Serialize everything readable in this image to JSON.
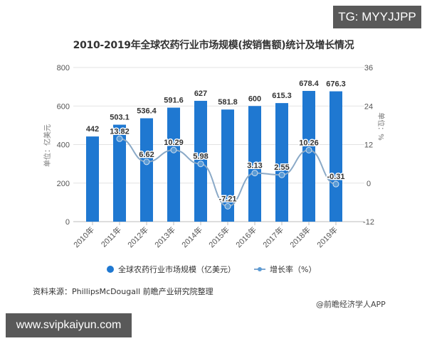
{
  "badges": {
    "tg": "TG: MYYJJPP",
    "url": "www.svipkaiyun.com"
  },
  "title": "2010-2019年全球农药行业市场规模(按销售额)统计及增长情况",
  "axes": {
    "left_title": "单位：亿美元",
    "right_title": "单位：%"
  },
  "legend": {
    "bar": "全球农药行业市场规模（亿美元）",
    "line": "增长率（%）"
  },
  "footer": {
    "source": "资料来源：PhillipsMcDougall 前瞻产业研究院整理",
    "credit": "@前瞻经济学人APP"
  },
  "colors": {
    "bar": "#1f78d1",
    "line": "#8aa9c7",
    "marker": "#5b9bd5",
    "grid": "#e3e3e3"
  },
  "chart_data": {
    "type": "bar",
    "title": "2010-2019年全球农药行业市场规模(按销售额)统计及增长情况",
    "categories": [
      "2010年",
      "2011年",
      "2012年",
      "2013年",
      "2014年",
      "2015年",
      "2016年",
      "2017年",
      "2018年",
      "2019年"
    ],
    "series": [
      {
        "name": "全球农药行业市场规模（亿美元）",
        "type": "bar",
        "axis": "left",
        "values": [
          442,
          503.1,
          536.4,
          591.6,
          627,
          581.8,
          600,
          615.3,
          678.4,
          676.3
        ]
      },
      {
        "name": "增长率（%）",
        "type": "line",
        "axis": "right",
        "values": [
          null,
          13.82,
          6.62,
          10.29,
          5.98,
          -7.21,
          3.13,
          2.55,
          10.26,
          -0.31
        ]
      }
    ],
    "ylabel": "单位：亿美元",
    "y2label": "单位：%",
    "ylim": [
      0,
      800
    ],
    "yticks": [
      0,
      200,
      400,
      600,
      800
    ],
    "y2lim": [
      -12,
      36
    ],
    "y2ticks": [
      -12,
      0,
      12,
      24,
      36
    ],
    "grid": true,
    "legend_position": "bottom"
  }
}
